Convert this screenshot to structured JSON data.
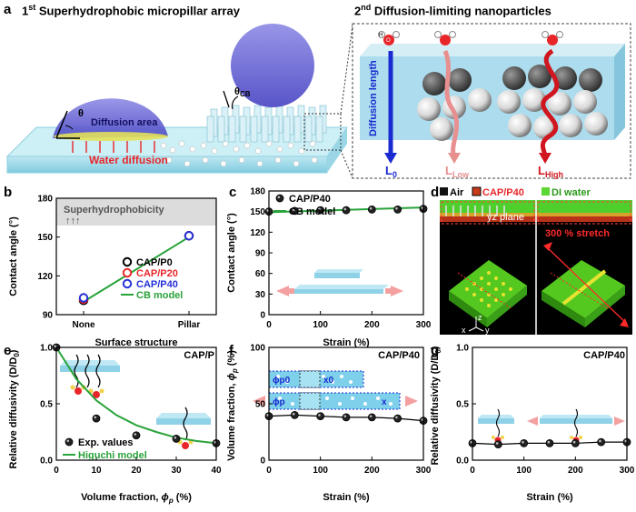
{
  "panel_a": {
    "label": "a",
    "title1_prefix": "1",
    "title1_sup": "st",
    "title1_text": " Superhydrophobic micropillar array",
    "title2_prefix": "2",
    "title2_sup": "nd",
    "title2_text": " Diffusion-limiting nanoparticles",
    "theta": "θ",
    "theta_cb": "θ",
    "theta_cb_sub": "CB",
    "diffusion_area": "Diffusion area",
    "water_diffusion": "Water diffusion",
    "diffusion_length": "Diffusion length",
    "l0": "L",
    "l0_sub": "0",
    "llow": "L",
    "llow_sub": "Low",
    "lhigh": "L",
    "lhigh_sub": "High",
    "h": "H",
    "o": "O"
  },
  "chart_data": [
    {
      "id": "b",
      "type": "scatter",
      "label": "b",
      "xlabel": "Surface structure",
      "ylabel": "Contact angle (°)",
      "categories": [
        "None",
        "Pillar"
      ],
      "ylim": [
        90,
        180
      ],
      "yticks": [
        "90",
        "120",
        "150",
        "180"
      ],
      "shaded_label": "Superhydrophobicity",
      "arrows": "↑↑↑",
      "series": [
        {
          "name": "CAP/P0",
          "color": "#000000",
          "values": [
            101,
            151
          ]
        },
        {
          "name": "CAP/P20",
          "color": "#e8262a",
          "values": [
            102,
            151
          ]
        },
        {
          "name": "CAP/P40",
          "color": "#2430d6",
          "values": [
            103,
            151
          ]
        },
        {
          "name": "CB model",
          "color": "#29a33a",
          "values": [
            100,
            150
          ]
        }
      ]
    },
    {
      "id": "c",
      "type": "line",
      "label": "c",
      "xlabel": "Strain (%)",
      "ylabel": "Contact angle (°)",
      "xlim": [
        0,
        300
      ],
      "ylim": [
        0,
        180
      ],
      "xticks": [
        "0",
        "100",
        "200",
        "300"
      ],
      "yticks": [
        "0",
        "30",
        "60",
        "90",
        "120",
        "150",
        "180"
      ],
      "series": [
        {
          "name": "CAP/P40",
          "color": "#000000",
          "x": [
            0,
            50,
            100,
            150,
            200,
            250,
            300
          ],
          "y": [
            150,
            151,
            152,
            152,
            153,
            153,
            154
          ]
        },
        {
          "name": "CB model",
          "color": "#29a33a",
          "x": [
            0,
            300
          ],
          "y": [
            149,
            156
          ]
        }
      ]
    },
    {
      "id": "e",
      "type": "scatter",
      "label": "e",
      "xlabel": "Volume fraction, ϕp (%)",
      "xlabel_main": "Volume fraction, ",
      "xlabel_phi": "ϕ",
      "xlabel_sub": "p",
      "xlabel_tail": " (%)",
      "ylabel": "Relative diffusivity (D/D0)",
      "ylabel_main": "Relative diffusivity (D/D",
      "ylabel_sub": "0",
      "ylabel_tail": ")",
      "tag": "CAP/P",
      "xlim": [
        0,
        40
      ],
      "ylim": [
        0,
        1
      ],
      "xticks": [
        "0",
        "10",
        "20",
        "30",
        "40"
      ],
      "yticks": [
        "0.0",
        "0.5",
        "1.0"
      ],
      "series": [
        {
          "name": "Exp. values",
          "color": "#000000",
          "x": [
            0,
            10,
            20,
            30,
            40
          ],
          "y": [
            1.0,
            0.37,
            0.22,
            0.19,
            0.15
          ]
        },
        {
          "name": "Higuchi model",
          "color": "#29a33a",
          "x": [
            0,
            5,
            10,
            15,
            20,
            25,
            30,
            35,
            40
          ],
          "y": [
            1.0,
            0.72,
            0.53,
            0.4,
            0.31,
            0.25,
            0.2,
            0.17,
            0.15
          ]
        }
      ]
    },
    {
      "id": "f",
      "type": "line",
      "label": "f",
      "xlabel": "Strain (%)",
      "ylabel": "Volume fraction, ϕp (%)",
      "ylabel_main": "Volume fraction, ",
      "ylabel_phi": "ϕ",
      "ylabel_sub": "p",
      "ylabel_tail": " (%)",
      "tag": "CAP/P40",
      "xlim": [
        0,
        300
      ],
      "ylim": [
        0,
        100
      ],
      "xticks": [
        "0",
        "100",
        "200",
        "300"
      ],
      "yticks": [
        "0",
        "50",
        "100"
      ],
      "phi_p0": "ϕp0",
      "phi_p": "ϕp",
      "x0": "x0",
      "x": "x",
      "series": [
        {
          "name": "CAP/P40",
          "color": "#000000",
          "x": [
            0,
            50,
            100,
            150,
            200,
            250,
            300
          ],
          "y": [
            39,
            40,
            39,
            38,
            38,
            37,
            35
          ]
        }
      ]
    },
    {
      "id": "g",
      "type": "line",
      "label": "g",
      "xlabel": "Strain (%)",
      "ylabel": "Relative diffusivity (D/D0)",
      "ylabel_main": "Relative diffusivity (D/D",
      "ylabel_sub": "0",
      "ylabel_tail": ")",
      "tag": "CAP/P40",
      "xlim": [
        0,
        300
      ],
      "ylim": [
        0,
        1
      ],
      "xticks": [
        "0",
        "100",
        "200",
        "300"
      ],
      "yticks": [
        "0.0",
        "0.5",
        "1.0"
      ],
      "series": [
        {
          "name": "CAP/P40",
          "color": "#000000",
          "x": [
            0,
            50,
            100,
            150,
            200,
            250,
            300
          ],
          "y": [
            0.15,
            0.14,
            0.15,
            0.15,
            0.15,
            0.16,
            0.16
          ]
        }
      ]
    }
  ],
  "panel_d": {
    "label": "d",
    "legend": [
      {
        "name": "Air",
        "color": "#111111"
      },
      {
        "name": "CAP/P40",
        "color": "#c83a1a",
        "text_color": "#e8262a"
      },
      {
        "name": "DI water",
        "color": "#5cd634"
      }
    ],
    "yz_plane": "yz plane",
    "stretch": "300 % stretch",
    "axis_z": "z",
    "axis_x": "x",
    "axis_y": "y"
  }
}
